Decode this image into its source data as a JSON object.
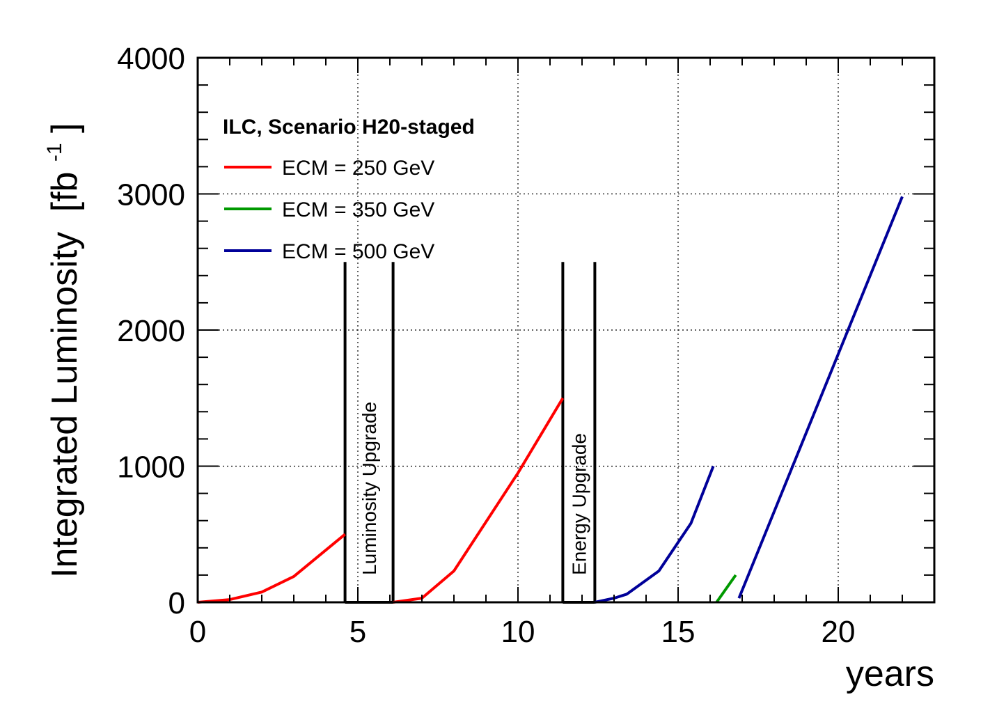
{
  "chart_data": {
    "type": "line",
    "title": "",
    "xlabel": "years",
    "ylabel": "Integrated Luminosity",
    "ylabel_unit": "[fb",
    "ylabel_unit_sup": "-1",
    "ylabel_unit_close": "]",
    "xlim": [
      0,
      23
    ],
    "ylim": [
      0,
      4000
    ],
    "x_ticks": [
      "0",
      "5",
      "10",
      "15",
      "20"
    ],
    "y_ticks": [
      "0",
      "1000",
      "2000",
      "3000",
      "4000"
    ],
    "grid": true,
    "legend": {
      "title": "ILC, Scenario H20-staged",
      "position": "top-left",
      "entries": [
        {
          "label": "ECM = 250 GeV",
          "color": "#ff0000"
        },
        {
          "label": "ECM = 350 GeV",
          "color": "#009900"
        },
        {
          "label": "ECM = 500 GeV",
          "color": "#000099"
        }
      ]
    },
    "series": [
      {
        "name": "ECM = 250 GeV",
        "color": "#ff0000",
        "segments": [
          [
            [
              0,
              0
            ],
            [
              1,
              20
            ],
            [
              2,
              75
            ],
            [
              3,
              190
            ],
            [
              4.6,
              500
            ]
          ],
          [
            [
              6.1,
              0
            ],
            [
              7,
              30
            ],
            [
              8,
              230
            ],
            [
              10,
              950
            ],
            [
              11.4,
              1500
            ]
          ]
        ]
      },
      {
        "name": "ECM = 350 GeV",
        "color": "#009900",
        "segments": [
          [
            [
              16.2,
              0
            ],
            [
              16.8,
              200
            ]
          ]
        ]
      },
      {
        "name": "ECM = 500 GeV",
        "color": "#000099",
        "segments": [
          [
            [
              12.4,
              0
            ],
            [
              13,
              30
            ],
            [
              13.4,
              60
            ],
            [
              14.4,
              230
            ],
            [
              15.4,
              580
            ],
            [
              16.1,
              1000
            ]
          ],
          [
            [
              16.9,
              30
            ],
            [
              22,
              2980
            ]
          ]
        ]
      }
    ],
    "annotations": [
      {
        "label": "Luminosity Upgrade",
        "x_start": 4.6,
        "x_end": 6.1,
        "y_top": 2500
      },
      {
        "label": "Energy Upgrade",
        "x_start": 11.4,
        "x_end": 12.4,
        "y_top": 2500
      }
    ]
  }
}
